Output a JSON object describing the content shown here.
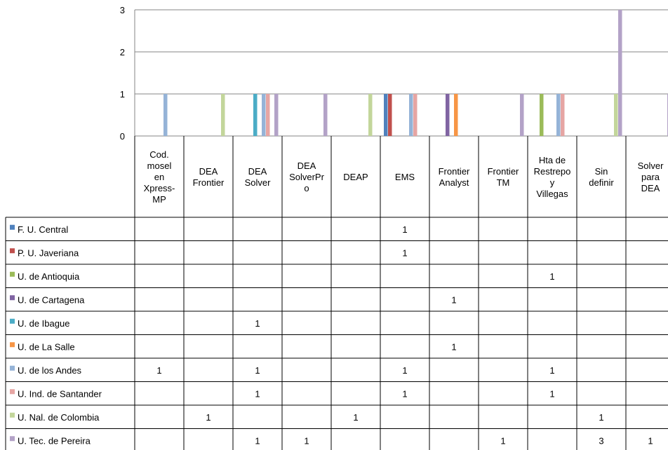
{
  "chart_data": {
    "type": "bar",
    "title": "",
    "xlabel": "",
    "ylabel": "",
    "ylim": [
      0,
      3
    ],
    "yticks": [
      "0",
      "1",
      "2",
      "3"
    ],
    "grid": true,
    "legend_position": "data-table",
    "categories": [
      [
        "Cod.",
        "mosel",
        "en",
        "Xpress-",
        "MP"
      ],
      [
        "DEA",
        "Frontier"
      ],
      [
        "DEA",
        "Solver"
      ],
      [
        "DEA",
        "SolverPr",
        "o"
      ],
      [
        "DEAP"
      ],
      [
        "EMS"
      ],
      [
        "Frontier",
        "Analyst"
      ],
      [
        "Frontier",
        "TM"
      ],
      [
        "Hta de",
        "Restrepo",
        "y",
        "Villegas"
      ],
      [
        "Sin",
        "definir"
      ],
      [
        "Solver",
        "para",
        "DEA"
      ]
    ],
    "series": [
      {
        "name": "F. U. Central",
        "color": "#4f81bd",
        "values": [
          null,
          null,
          null,
          null,
          null,
          1,
          null,
          null,
          null,
          null,
          null
        ]
      },
      {
        "name": "P. U. Javeriana",
        "color": "#c0504d",
        "values": [
          null,
          null,
          null,
          null,
          null,
          1,
          null,
          null,
          null,
          null,
          null
        ]
      },
      {
        "name": "U. de Antioquia",
        "color": "#9bbb59",
        "values": [
          null,
          null,
          null,
          null,
          null,
          null,
          null,
          null,
          1,
          null,
          null
        ]
      },
      {
        "name": "U. de Cartagena",
        "color": "#8064a2",
        "values": [
          null,
          null,
          null,
          null,
          null,
          null,
          1,
          null,
          null,
          null,
          null
        ]
      },
      {
        "name": "U. de Ibague",
        "color": "#4bacc6",
        "values": [
          null,
          null,
          1,
          null,
          null,
          null,
          null,
          null,
          null,
          null,
          null
        ]
      },
      {
        "name": "U. de La Salle",
        "color": "#f79646",
        "values": [
          null,
          null,
          null,
          null,
          null,
          null,
          1,
          null,
          null,
          null,
          null
        ]
      },
      {
        "name": "U. de los Andes",
        "color": "#95b3d7",
        "values": [
          1,
          null,
          1,
          null,
          null,
          1,
          null,
          null,
          1,
          null,
          null
        ]
      },
      {
        "name": "U. Ind. de Santander",
        "color": "#e6a5a3",
        "values": [
          null,
          null,
          1,
          null,
          null,
          1,
          null,
          null,
          1,
          null,
          null
        ]
      },
      {
        "name": "U. Nal. de Colombia",
        "color": "#c3d69b",
        "values": [
          null,
          1,
          null,
          null,
          1,
          null,
          null,
          null,
          null,
          1,
          null
        ]
      },
      {
        "name": "U. Tec. de Pereira",
        "color": "#b3a2c7",
        "values": [
          null,
          null,
          1,
          1,
          null,
          null,
          null,
          1,
          null,
          3,
          1
        ]
      }
    ]
  }
}
